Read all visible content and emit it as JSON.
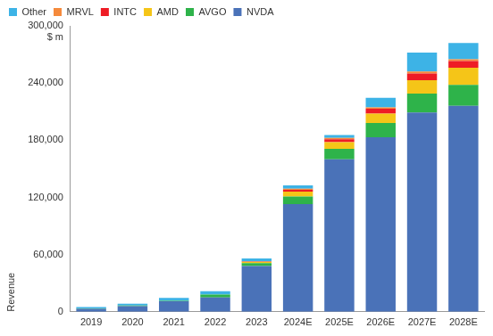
{
  "chart_data": {
    "type": "bar",
    "stacked": true,
    "grid": false,
    "legend": "top-left",
    "y_label": "Revenue",
    "annotations": [
      "$ m"
    ],
    "categories": [
      "2019",
      "2020",
      "2021",
      "2022",
      "2023",
      "2024E",
      "2025E",
      "2026E",
      "2027E",
      "2028E"
    ],
    "series": [
      {
        "name": "NVDA",
        "color": "#4a72b8",
        "values": [
          3000,
          6000,
          11000,
          15000,
          48000,
          113000,
          160000,
          183000,
          209000,
          216000
        ]
      },
      {
        "name": "AVGO",
        "color": "#2eb34a",
        "values": [
          500,
          500,
          500,
          3000,
          3000,
          8000,
          11000,
          15000,
          20000,
          22000
        ]
      },
      {
        "name": "AMD",
        "color": "#f5c518",
        "values": [
          0,
          0,
          0,
          0,
          1500,
          5000,
          7000,
          10000,
          14000,
          18000
        ]
      },
      {
        "name": "INTC",
        "color": "#ee1c25",
        "values": [
          0,
          0,
          0,
          0,
          500,
          2000,
          3000,
          5000,
          7000,
          7000
        ]
      },
      {
        "name": "MRVL",
        "color": "#f58a3c",
        "values": [
          0,
          0,
          0,
          0,
          0,
          1000,
          1500,
          1500,
          2000,
          2000
        ]
      },
      {
        "name": "Other",
        "color": "#3db3e6",
        "values": [
          1500,
          2000,
          3000,
          3500,
          3000,
          3500,
          3000,
          10000,
          20000,
          17000
        ]
      }
    ],
    "ylim": [
      0,
      300000
    ],
    "yticks": [
      0,
      {
        "value": 60000,
        "label": "60,000"
      },
      {
        "value": 120000,
        "label": "120,000"
      },
      {
        "value": 180000,
        "label": "180,000"
      },
      {
        "value": 240000,
        "label": "240,000"
      },
      {
        "value": 300000,
        "label": "300,000"
      }
    ]
  }
}
